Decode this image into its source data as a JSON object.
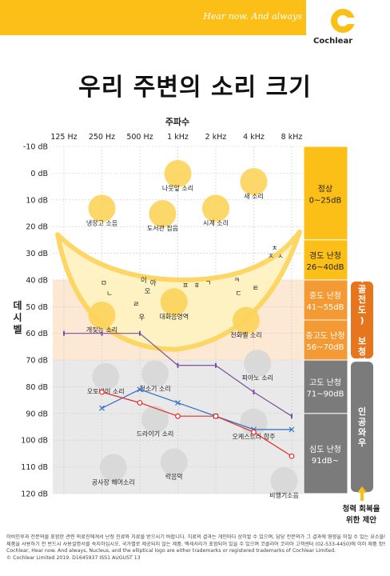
{
  "header": {
    "tagline": "Hear now. And always",
    "brand": "Cochlear"
  },
  "title": "우리 주변의 소리 크기",
  "colors": {
    "yellow": "#fcbf17",
    "orange": "#f39a34",
    "dark_orange": "#e6761d",
    "grey": "#7b7b7b",
    "red": "#e52b2b",
    "blue": "#2e6fc7",
    "purple": "#7b4fa0"
  },
  "chart_data": {
    "type": "line",
    "xlabel": "주파수",
    "ylabel": "데시벨",
    "x_ticks": [
      "125 Hz",
      "250 Hz",
      "500 Hz",
      "1 kHz",
      "2 kHz",
      "4 kHz",
      "8 kHz"
    ],
    "y_ticks": [
      "-10 dB",
      "0 dB",
      "10 dB",
      "20 dB",
      "30 dB",
      "40 dB",
      "50 dB",
      "60 dB",
      "70 dB",
      "80 dB",
      "90 dB",
      "100 dB",
      "110 dB",
      "120 dB"
    ],
    "ylim": [
      -10,
      120
    ],
    "y_inverted": true,
    "series": [
      {
        "color": "purple",
        "points": [
          [
            0,
            60
          ],
          [
            1,
            60
          ],
          [
            2,
            60
          ],
          [
            3,
            72
          ],
          [
            4,
            72
          ],
          [
            5,
            82
          ],
          [
            6,
            91
          ]
        ]
      },
      {
        "color": "blue",
        "points": [
          [
            1,
            88
          ],
          [
            2,
            81
          ],
          [
            3,
            86
          ],
          [
            4,
            91
          ],
          [
            5,
            96
          ],
          [
            6,
            96
          ]
        ]
      },
      {
        "color": "red",
        "points": [
          [
            1,
            82
          ],
          [
            2,
            86
          ],
          [
            3,
            91
          ],
          [
            4,
            91
          ],
          [
            5,
            97
          ],
          [
            6,
            106
          ]
        ]
      }
    ],
    "sounds": [
      {
        "label": "나뭇잎 소리",
        "x": 3,
        "y": 2
      },
      {
        "label": "새 소리",
        "x": 5,
        "y": 5
      },
      {
        "label": "냉장고 소음",
        "x": 1,
        "y": 15
      },
      {
        "label": "도서관 잡음",
        "x": 2.6,
        "y": 17
      },
      {
        "label": "시계 소리",
        "x": 4,
        "y": 15
      },
      {
        "label": "개짖는 소리",
        "x": 1,
        "y": 55
      },
      {
        "label": "대화음영역",
        "x": 2.9,
        "y": 50
      },
      {
        "label": "전화벨 소리",
        "x": 4.8,
        "y": 57
      },
      {
        "label": "피아노 소리",
        "x": 5.1,
        "y": 73
      },
      {
        "label": "오토바이 소리",
        "x": 1.1,
        "y": 78
      },
      {
        "label": "청소기 소리",
        "x": 2.4,
        "y": 77
      },
      {
        "label": "드라이기 소리",
        "x": 2.4,
        "y": 94
      },
      {
        "label": "오케스트라 합주",
        "x": 5,
        "y": 95
      },
      {
        "label": "공사장 해머소리",
        "x": 1.3,
        "y": 112
      },
      {
        "label": "락음악",
        "x": 2.9,
        "y": 110
      },
      {
        "label": "비행기소음",
        "x": 5.8,
        "y": 117
      }
    ],
    "speech_letters": [
      {
        "t": "ㅁ",
        "x": 1.05,
        "y": 41
      },
      {
        "t": "이",
        "x": 2.1,
        "y": 40
      },
      {
        "t": "아",
        "x": 2.35,
        "y": 41
      },
      {
        "t": "ㄴ",
        "x": 1.2,
        "y": 45
      },
      {
        "t": "오",
        "x": 2.2,
        "y": 44
      },
      {
        "t": "ㅍ",
        "x": 3.2,
        "y": 42
      },
      {
        "t": "ㅎ",
        "x": 3.5,
        "y": 42
      },
      {
        "t": "ㄱ",
        "x": 3.8,
        "y": 41
      },
      {
        "t": "ㅋ",
        "x": 4.55,
        "y": 40
      },
      {
        "t": "ㄹ",
        "x": 1.9,
        "y": 49
      },
      {
        "t": "ㄷ",
        "x": 4.6,
        "y": 45
      },
      {
        "t": "ㅌ",
        "x": 5.05,
        "y": 43
      },
      {
        "t": "우",
        "x": 2.05,
        "y": 54
      },
      {
        "t": "ㅊ",
        "x": 5.55,
        "y": 28
      },
      {
        "t": "ㅅ",
        "x": 5.7,
        "y": 31
      },
      {
        "t": "ㅈ",
        "x": 5.45,
        "y": 31
      }
    ],
    "hearing_levels": [
      {
        "label": "정상",
        "range": "0~25dB",
        "from": -10,
        "to": 25,
        "color": "yellow"
      },
      {
        "label": "경도 난청",
        "range": "26~40dB",
        "from": 25,
        "to": 40,
        "color": "yellow"
      },
      {
        "label": "중도 난청",
        "range": "41~55dB",
        "from": 40,
        "to": 55,
        "color": "orange"
      },
      {
        "label": "중고도 난청",
        "range": "56~70dB",
        "from": 55,
        "to": 70,
        "color": "orange"
      },
      {
        "label": "고도 난청",
        "range": "71~90dB",
        "from": 70,
        "to": 90,
        "color": "grey"
      },
      {
        "label": "심도 난청",
        "range": "91dB~",
        "from": 90,
        "to": 120,
        "color": "grey"
      }
    ],
    "devices": [
      {
        "label": "(골전도) 보청기",
        "from": 40,
        "to": 70,
        "color": "dark_orange"
      },
      {
        "label": "인공와우",
        "from": 70,
        "to": 120,
        "color": "grey"
      }
    ],
    "recovery_note": [
      "청력 회복을",
      "위한 제안"
    ]
  },
  "footer": [
    "이비인후과 전문의를 포함한 관련 의료진에게서 난청 진료와 치료를 받으시기 바랍니다. 치료의 결과는 개인마다 상이할 수 있으며, 담당 전문의가 그 결과에 영향을 미칠 수 있는 요소들에 대해 안내할 것입니다.",
    "제품을 사용하기 전 반드시 사용설명서를 숙지하십시오. 국가별로 제공되지 않는 제품, 액세서리가 포함되어 있을 수 있으며 코클리어 코리아 고객센터 (02-533-4450)에 이러 제품 정보에 대해 문의해주시기 바랍니다.",
    "Cochlear, Hear now. And always, Nucleus, and the elliptical logo are either trademarks or registered trademarks of Cochlear Limited.",
    "© Cochlear Limited 2019. D1645937 ISS1 AUGUST 13"
  ]
}
